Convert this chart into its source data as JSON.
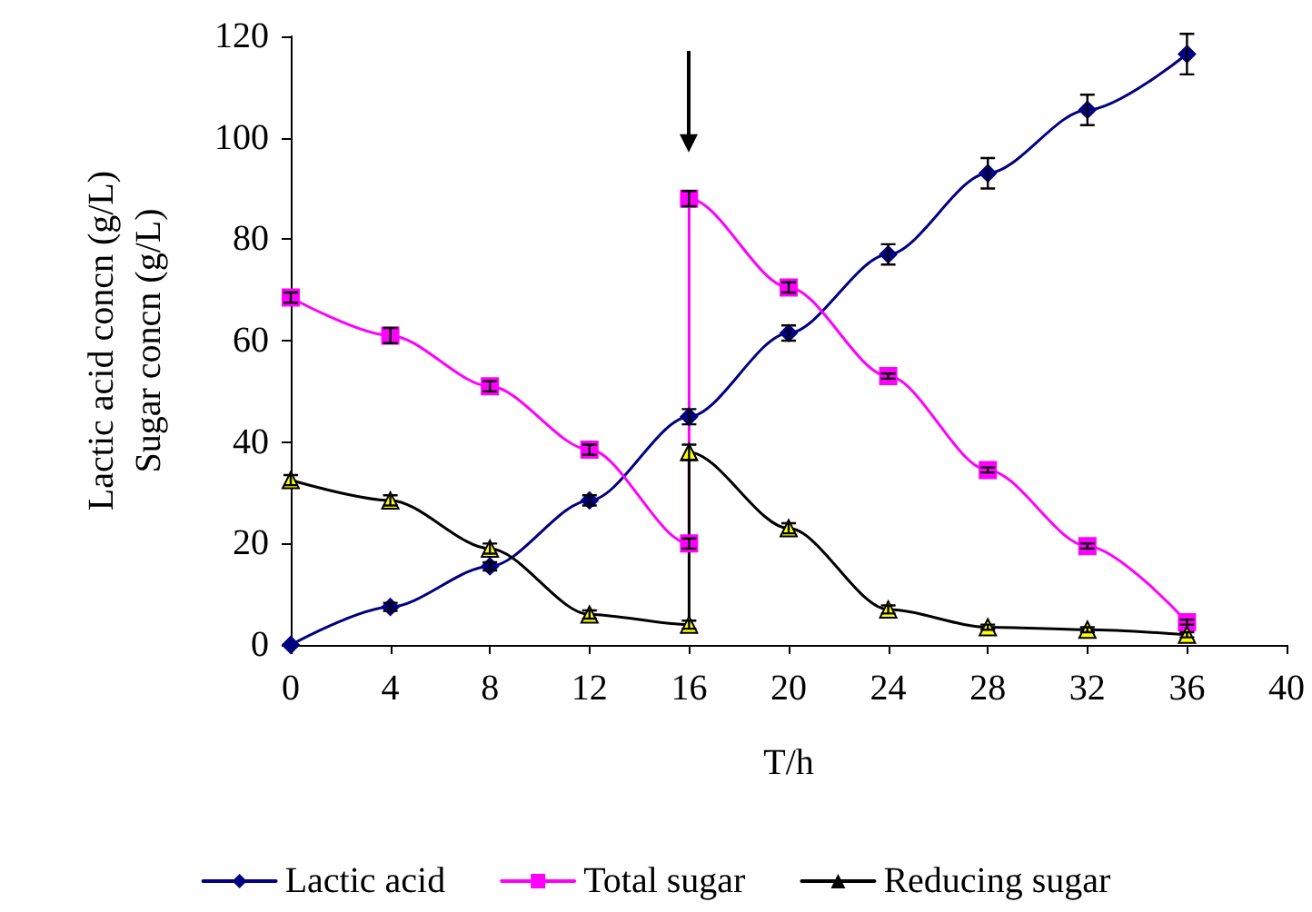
{
  "chart_data": {
    "type": "line",
    "xlabel": "T/h",
    "ylabel": "Lactic acid concn (g/L)\nSugar concn (g/L)",
    "xlim": [
      0,
      40
    ],
    "xticks": [
      0,
      4,
      8,
      12,
      16,
      20,
      24,
      28,
      32,
      36,
      40
    ],
    "ylim": [
      0,
      120
    ],
    "yticks": [
      0,
      20,
      40,
      60,
      80,
      100,
      120
    ],
    "grid": false,
    "legend": "bottom",
    "series": [
      {
        "name": "Lactic acid",
        "color": "#000080",
        "marker": "diamond",
        "x": [
          0,
          4,
          8,
          12,
          16,
          20,
          24,
          28,
          32,
          36
        ],
        "values": [
          0,
          7.5,
          15.5,
          28.5,
          45,
          61.5,
          77,
          93,
          105.5,
          116.5
        ],
        "errors": [
          null,
          0.8,
          0.8,
          1,
          1.5,
          1.5,
          2,
          3,
          3,
          4
        ]
      },
      {
        "name": "Total sugar",
        "color": "#ff00ff",
        "marker": "square",
        "x": [
          0,
          4,
          8,
          12,
          16,
          16,
          20,
          24,
          28,
          32,
          36
        ],
        "values": [
          68.5,
          61,
          51,
          38.5,
          20,
          88,
          70.5,
          53,
          34.5,
          19.5,
          4.5
        ],
        "errors": [
          1,
          1.5,
          1,
          1,
          1,
          1.5,
          1,
          0.5,
          0.5,
          0.5,
          0.5
        ]
      },
      {
        "name": "Reducing sugar",
        "color": "#000000",
        "colors": [
          "#ffff00",
          "#ffff00",
          "#ffff00",
          "#ffff00",
          "#ffff00",
          "#ffff00",
          "#ffff00",
          "#ffff00",
          "#ffff00",
          "#ffff00",
          "#ffff00"
        ],
        "marker": "triangle",
        "x": [
          0,
          4,
          8,
          12,
          16,
          16,
          20,
          24,
          28,
          32,
          36
        ],
        "values": [
          32.5,
          28.5,
          19,
          6,
          4,
          38,
          23,
          7,
          3.5,
          3,
          2
        ],
        "errors": [
          1,
          1,
          1,
          0.8,
          0.8,
          1.5,
          1,
          0.8,
          0.5,
          0.5,
          0.5
        ]
      }
    ]
  }
}
